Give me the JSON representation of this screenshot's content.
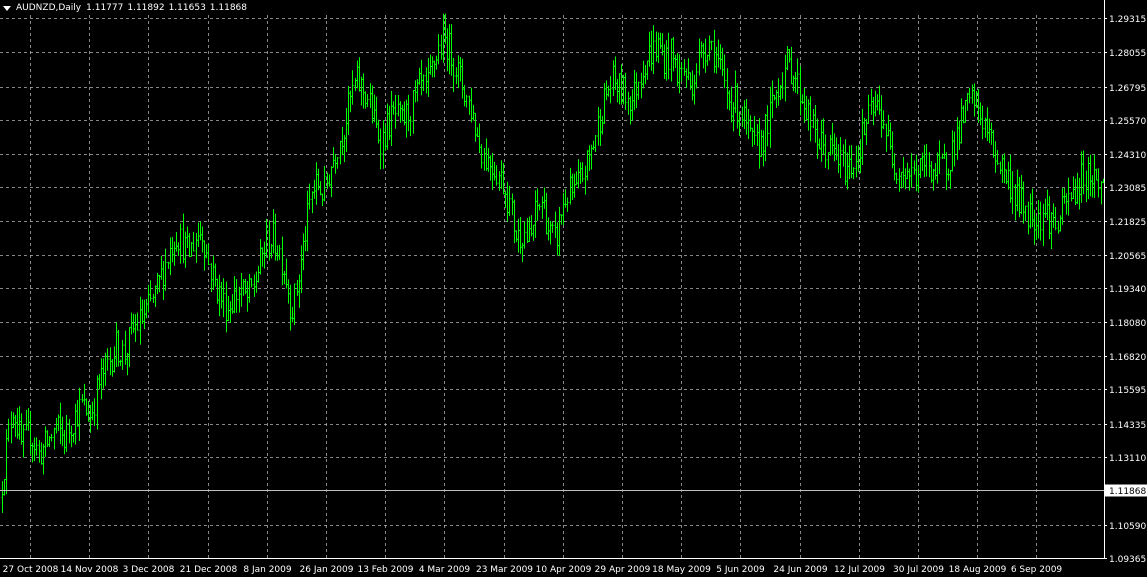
{
  "header": {
    "symbol": "AUDNZD,Daily",
    "open": "1.11777",
    "high": "1.11892",
    "low": "1.11653",
    "close": "1.11868"
  },
  "colors": {
    "background": "#000000",
    "candle": "#00ff00",
    "grid": "#c0c0c0",
    "axis": "#ffffff",
    "text": "#ffffff",
    "price_line": "#c0c0c0",
    "price_label_bg": "#ffffff",
    "price_label_text": "#000000"
  },
  "chart_data": {
    "type": "candlestick",
    "symbol": "AUDNZD",
    "timeframe": "Daily",
    "ylim": [
      1.09365,
      1.2944
    ],
    "y_ticks": [
      "1.29315",
      "1.28055",
      "1.26795",
      "1.25570",
      "1.24310",
      "1.23085",
      "1.21825",
      "1.20565",
      "1.19340",
      "1.18080",
      "1.16820",
      "1.15595",
      "1.14335",
      "1.13110",
      "1.10590",
      "1.09365"
    ],
    "x_ticks": [
      "27 Oct 2008",
      "14 Nov 2008",
      "3 Dec 2008",
      "21 Dec 2008",
      "8 Jan 2009",
      "26 Jan 2009",
      "13 Feb 2009",
      "4 Mar 2009",
      "23 Mar 2009",
      "10 Apr 2009",
      "29 Apr 2009",
      "18 May 2009",
      "5 Jun 2009",
      "24 Jun 2009",
      "12 Jul 2009",
      "30 Jul 2009",
      "18 Aug 2009",
      "6 Sep 2009"
    ],
    "current_price": "1.11868",
    "grid": true,
    "close_path": [
      [
        0,
        1.116
      ],
      [
        3,
        1.135
      ],
      [
        6,
        1.15
      ],
      [
        10,
        1.135
      ],
      [
        14,
        1.14
      ],
      [
        18,
        1.132
      ],
      [
        22,
        1.136
      ],
      [
        26,
        1.142
      ],
      [
        30,
        1.138
      ],
      [
        34,
        1.145
      ],
      [
        38,
        1.15
      ],
      [
        42,
        1.146
      ],
      [
        46,
        1.158
      ],
      [
        50,
        1.165
      ],
      [
        54,
        1.172
      ],
      [
        58,
        1.169
      ],
      [
        62,
        1.178
      ],
      [
        66,
        1.182
      ],
      [
        70,
        1.187
      ],
      [
        74,
        1.195
      ],
      [
        78,
        1.205
      ],
      [
        82,
        1.214
      ],
      [
        85,
        1.21
      ],
      [
        88,
        1.206
      ],
      [
        91,
        1.212
      ],
      [
        94,
        1.215
      ],
      [
        97,
        1.203
      ],
      [
        100,
        1.196
      ],
      [
        103,
        1.19
      ],
      [
        106,
        1.186
      ],
      [
        109,
        1.19
      ],
      [
        112,
        1.193
      ],
      [
        115,
        1.189
      ],
      [
        118,
        1.194
      ],
      [
        121,
        1.202
      ],
      [
        124,
        1.21
      ],
      [
        127,
        1.212
      ],
      [
        130,
        1.208
      ],
      [
        133,
        1.199
      ],
      [
        136,
        1.185
      ],
      [
        139,
        1.196
      ],
      [
        142,
        1.212
      ],
      [
        145,
        1.228
      ],
      [
        148,
        1.232
      ],
      [
        151,
        1.228
      ],
      [
        154,
        1.238
      ],
      [
        157,
        1.246
      ],
      [
        160,
        1.252
      ],
      [
        163,
        1.262
      ],
      [
        166,
        1.27
      ],
      [
        169,
        1.267
      ],
      [
        172,
        1.263
      ],
      [
        175,
        1.253
      ],
      [
        178,
        1.248
      ],
      [
        181,
        1.254
      ],
      [
        184,
        1.258
      ],
      [
        187,
        1.254
      ],
      [
        190,
        1.258
      ],
      [
        193,
        1.262
      ],
      [
        196,
        1.268
      ],
      [
        199,
        1.266
      ],
      [
        202,
        1.276
      ],
      [
        205,
        1.283
      ],
      [
        208,
        1.285
      ],
      [
        211,
        1.279
      ],
      [
        214,
        1.272
      ],
      [
        217,
        1.265
      ],
      [
        220,
        1.259
      ],
      [
        223,
        1.248
      ],
      [
        226,
        1.242
      ],
      [
        229,
        1.24
      ],
      [
        232,
        1.236
      ],
      [
        235,
        1.232
      ],
      [
        238,
        1.223
      ],
      [
        241,
        1.212
      ],
      [
        244,
        1.215
      ],
      [
        247,
        1.21
      ],
      [
        250,
        1.222
      ],
      [
        253,
        1.226
      ],
      [
        256,
        1.214
      ],
      [
        259,
        1.21
      ],
      [
        262,
        1.223
      ],
      [
        265,
        1.229
      ],
      [
        268,
        1.228
      ],
      [
        271,
        1.234
      ],
      [
        274,
        1.24
      ],
      [
        277,
        1.248
      ],
      [
        280,
        1.258
      ],
      [
        283,
        1.266
      ],
      [
        286,
        1.27
      ],
      [
        289,
        1.267
      ],
      [
        292,
        1.265
      ],
      [
        295,
        1.263
      ],
      [
        298,
        1.272
      ],
      [
        301,
        1.278
      ],
      [
        304,
        1.281
      ],
      [
        307,
        1.283
      ],
      [
        310,
        1.278
      ],
      [
        313,
        1.28
      ],
      [
        316,
        1.273
      ],
      [
        319,
        1.274
      ],
      [
        322,
        1.268
      ],
      [
        325,
        1.276
      ],
      [
        328,
        1.282
      ],
      [
        331,
        1.285
      ],
      [
        334,
        1.279
      ],
      [
        337,
        1.27
      ],
      [
        340,
        1.263
      ],
      [
        343,
        1.262
      ],
      [
        346,
        1.258
      ],
      [
        349,
        1.25
      ],
      [
        352,
        1.245
      ],
      [
        355,
        1.248
      ],
      [
        358,
        1.254
      ],
      [
        361,
        1.264
      ],
      [
        364,
        1.271
      ],
      [
        367,
        1.276
      ],
      [
        370,
        1.274
      ],
      [
        373,
        1.266
      ],
      [
        376,
        1.26
      ],
      [
        379,
        1.252
      ],
      [
        382,
        1.247
      ],
      [
        385,
        1.245
      ],
      [
        388,
        1.244
      ],
      [
        391,
        1.241
      ],
      [
        394,
        1.238
      ],
      [
        397,
        1.239
      ],
      [
        400,
        1.244
      ],
      [
        403,
        1.252
      ],
      [
        406,
        1.258
      ],
      [
        409,
        1.26
      ],
      [
        412,
        1.256
      ],
      [
        415,
        1.244
      ],
      [
        418,
        1.239
      ],
      [
        421,
        1.237
      ],
      [
        424,
        1.236
      ],
      [
        427,
        1.235
      ],
      [
        430,
        1.238
      ],
      [
        433,
        1.24
      ],
      [
        436,
        1.236
      ],
      [
        439,
        1.238
      ],
      [
        442,
        1.24
      ],
      [
        445,
        1.247
      ],
      [
        448,
        1.254
      ],
      [
        451,
        1.26
      ],
      [
        454,
        1.263
      ],
      [
        457,
        1.258
      ],
      [
        460,
        1.252
      ],
      [
        463,
        1.245
      ],
      [
        466,
        1.24
      ],
      [
        469,
        1.236
      ],
      [
        472,
        1.23
      ],
      [
        475,
        1.226
      ],
      [
        478,
        1.223
      ],
      [
        481,
        1.221
      ],
      [
        484,
        1.22
      ],
      [
        487,
        1.222
      ],
      [
        490,
        1.219
      ],
      [
        493,
        1.216
      ],
      [
        496,
        1.223
      ],
      [
        499,
        1.227
      ],
      [
        502,
        1.23
      ],
      [
        505,
        1.235
      ],
      [
        508,
        1.236
      ],
      [
        511,
        1.234
      ],
      [
        514,
        1.231
      ]
    ]
  }
}
